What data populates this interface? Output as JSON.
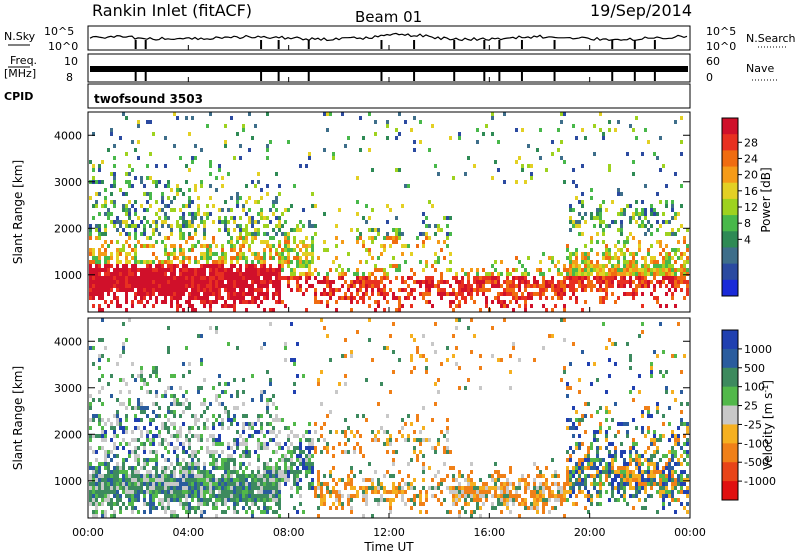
{
  "header": {
    "station": "Rankin Inlet (fitACF)",
    "beam": "Beam 01",
    "date": "19/Sep/2014"
  },
  "side_labels": {
    "nsky": "N.Sky",
    "nsearch": "N.Search",
    "freq": "Freq.",
    "freq_unit": "[MHz]",
    "nave": "Nave",
    "cpid": "CPID",
    "cpid_value": "twofsound 3503"
  },
  "chart_data": [
    {
      "type": "line",
      "id": "noise",
      "left_ticks": [
        "10^5",
        "10^0"
      ],
      "right_ticks": [
        "10^5",
        "10^0"
      ]
    },
    {
      "type": "line",
      "id": "freq",
      "left_ticks": [
        "10",
        "8"
      ],
      "right_ticks": [
        "60",
        "0"
      ]
    },
    {
      "type": "heatmap",
      "id": "power",
      "ylabel": "Slant Range [km]",
      "yticks": [
        1000,
        2000,
        3000,
        4000
      ],
      "ylim": [
        200,
        4500
      ],
      "x_ticks": [
        "00:00",
        "04:00",
        "08:00",
        "12:00",
        "16:00",
        "20:00",
        "00:00"
      ],
      "xlim_hours": [
        0,
        24
      ],
      "colorbar": {
        "label": "Power [dB]",
        "ticks": [
          "28",
          "24",
          "20",
          "16",
          "12",
          "8",
          "4"
        ],
        "colors": [
          "#d0102a",
          "#e83020",
          "#f06c10",
          "#f59b18",
          "#e3d024",
          "#9ed21f",
          "#48b84a",
          "#2e8a55",
          "#3e6e8a",
          "#2b4aa0",
          "#1a2ad8"
        ]
      }
    },
    {
      "type": "heatmap",
      "id": "velocity",
      "ylabel": "Slant Range [km]",
      "yticks": [
        1000,
        2000,
        3000,
        4000
      ],
      "ylim": [
        200,
        4500
      ],
      "xlabel": "Time UT",
      "x_ticks": [
        "00:00",
        "04:00",
        "08:00",
        "12:00",
        "16:00",
        "20:00",
        "00:00"
      ],
      "xlim_hours": [
        0,
        24
      ],
      "colorbar": {
        "label": "Velocity [m s",
        "label_sup": "-1",
        "label_end": "]",
        "ticks": [
          "1000",
          "500",
          "100",
          "25",
          "-25",
          "-100",
          "-500",
          "-1000"
        ],
        "colors": [
          "#2040b0",
          "#2a5c9e",
          "#3d8a5e",
          "#52b84a",
          "#c8c8c8",
          "#f5b020",
          "#f08018",
          "#e84418",
          "#e01010"
        ]
      }
    }
  ]
}
